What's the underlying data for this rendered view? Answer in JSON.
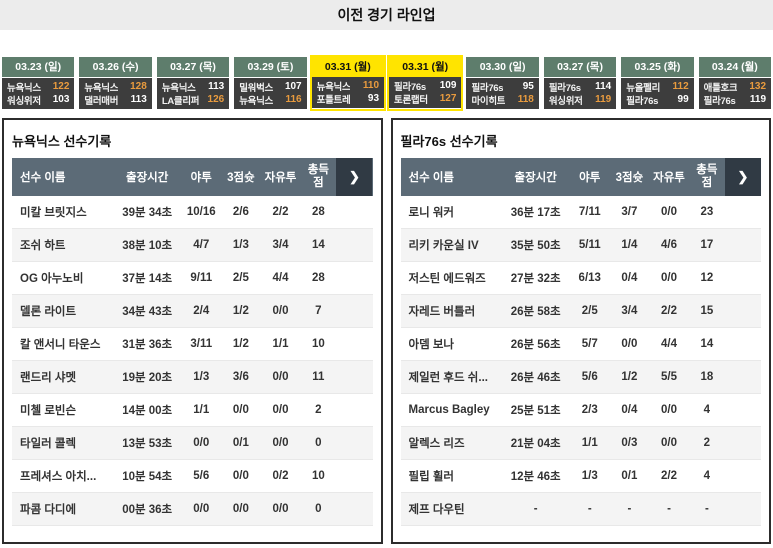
{
  "header": {
    "title": "이전 경기 라인업"
  },
  "colors": {
    "accent_yellow": "#ffe400",
    "date_green": "#5e7d6c",
    "score_bg": "#3d3d3d",
    "win_orange": "#e99b3e",
    "table_header_slate": "#5c6b77"
  },
  "games": [
    {
      "date": "03.23 (일)",
      "highlighted": false,
      "teams": [
        {
          "name": "뉴욕닉스",
          "score": "122",
          "winner": true
        },
        {
          "name": "워싱위저",
          "score": "103",
          "winner": false
        }
      ]
    },
    {
      "date": "03.26 (수)",
      "highlighted": false,
      "teams": [
        {
          "name": "뉴욕닉스",
          "score": "128",
          "winner": true
        },
        {
          "name": "댈러매버",
          "score": "113",
          "winner": false
        }
      ]
    },
    {
      "date": "03.27 (목)",
      "highlighted": false,
      "teams": [
        {
          "name": "뉴욕닉스",
          "score": "113",
          "winner": false
        },
        {
          "name": "LA클리퍼",
          "score": "126",
          "winner": true
        }
      ]
    },
    {
      "date": "03.29 (토)",
      "highlighted": false,
      "teams": [
        {
          "name": "밀워벅스",
          "score": "107",
          "winner": false
        },
        {
          "name": "뉴욕닉스",
          "score": "116",
          "winner": true
        }
      ]
    },
    {
      "date": "03.31 (월)",
      "highlighted": true,
      "teams": [
        {
          "name": "뉴욕닉스",
          "score": "110",
          "winner": true
        },
        {
          "name": "포틀트레",
          "score": "93",
          "winner": false
        }
      ]
    },
    {
      "date": "03.31 (월)",
      "highlighted": true,
      "teams": [
        {
          "name": "필라76s",
          "score": "109",
          "winner": false
        },
        {
          "name": "토론랩터",
          "score": "127",
          "winner": true
        }
      ]
    },
    {
      "date": "03.30 (일)",
      "highlighted": false,
      "teams": [
        {
          "name": "필라76s",
          "score": "95",
          "winner": false
        },
        {
          "name": "마이히트",
          "score": "118",
          "winner": true
        }
      ]
    },
    {
      "date": "03.27 (목)",
      "highlighted": false,
      "teams": [
        {
          "name": "필라76s",
          "score": "114",
          "winner": false
        },
        {
          "name": "워싱위저",
          "score": "119",
          "winner": true
        }
      ]
    },
    {
      "date": "03.25 (화)",
      "highlighted": false,
      "teams": [
        {
          "name": "뉴올펠리",
          "score": "112",
          "winner": true
        },
        {
          "name": "필라76s",
          "score": "99",
          "winner": false
        }
      ]
    },
    {
      "date": "03.24 (월)",
      "highlighted": false,
      "teams": [
        {
          "name": "애틀호크",
          "score": "132",
          "winner": true
        },
        {
          "name": "필라76s",
          "score": "119",
          "winner": false
        }
      ]
    }
  ],
  "tables": [
    {
      "title": "뉴욕닉스 선수기록",
      "columns": [
        "선수 이름",
        "출장시간",
        "야투",
        "3점슛",
        "자유투",
        "총득점"
      ],
      "scroll_icon": "❯",
      "rows": [
        [
          "미칼 브릿지스",
          "39분 34초",
          "10/16",
          "2/6",
          "2/2",
          "28"
        ],
        [
          "조쉬 하트",
          "38분 10초",
          "4/7",
          "1/3",
          "3/4",
          "14"
        ],
        [
          "OG 아누노비",
          "37분 14초",
          "9/11",
          "2/5",
          "4/4",
          "28"
        ],
        [
          "델론 라이트",
          "34분 43초",
          "2/4",
          "1/2",
          "0/0",
          "7"
        ],
        [
          "칼 앤서니 타운스",
          "31분 36초",
          "3/11",
          "1/2",
          "1/1",
          "10"
        ],
        [
          "랜드리 샤멧",
          "19분 20초",
          "1/3",
          "3/6",
          "0/0",
          "11"
        ],
        [
          "미첼 로빈슨",
          "14분 00초",
          "1/1",
          "0/0",
          "0/0",
          "2"
        ],
        [
          "타일러 콜렉",
          "13분 53초",
          "0/0",
          "0/1",
          "0/0",
          "0"
        ],
        [
          "프레셔스 아치...",
          "10분 54초",
          "5/6",
          "0/0",
          "0/2",
          "10"
        ],
        [
          "파콤 다디에",
          "00분 36초",
          "0/0",
          "0/0",
          "0/0",
          "0"
        ]
      ]
    },
    {
      "title": "필라76s 선수기록",
      "columns": [
        "선수 이름",
        "출장시간",
        "야투",
        "3점슛",
        "자유투",
        "총득점"
      ],
      "scroll_icon": "❯",
      "rows": [
        [
          "로니 워커",
          "36분 17초",
          "7/11",
          "3/7",
          "0/0",
          "23"
        ],
        [
          "리키 카운실 IV",
          "35분 50초",
          "5/11",
          "1/4",
          "4/6",
          "17"
        ],
        [
          "저스틴 에드워즈",
          "27분 32초",
          "6/13",
          "0/4",
          "0/0",
          "12"
        ],
        [
          "자레드 버틀러",
          "26분 58초",
          "2/5",
          "3/4",
          "2/2",
          "15"
        ],
        [
          "아뎀 보나",
          "26분 56초",
          "5/7",
          "0/0",
          "4/4",
          "14"
        ],
        [
          "제일런 후드 쉬...",
          "26분 46초",
          "5/6",
          "1/2",
          "5/5",
          "18"
        ],
        [
          "Marcus Bagley",
          "25분 51초",
          "2/3",
          "0/4",
          "0/0",
          "4"
        ],
        [
          "알렉스 리즈",
          "21분 04초",
          "1/1",
          "0/3",
          "0/0",
          "2"
        ],
        [
          "필립 휠러",
          "12분 46초",
          "1/3",
          "0/1",
          "2/2",
          "4"
        ],
        [
          "제프 다우틴",
          "-",
          "-",
          "-",
          "-",
          "-"
        ]
      ]
    }
  ]
}
